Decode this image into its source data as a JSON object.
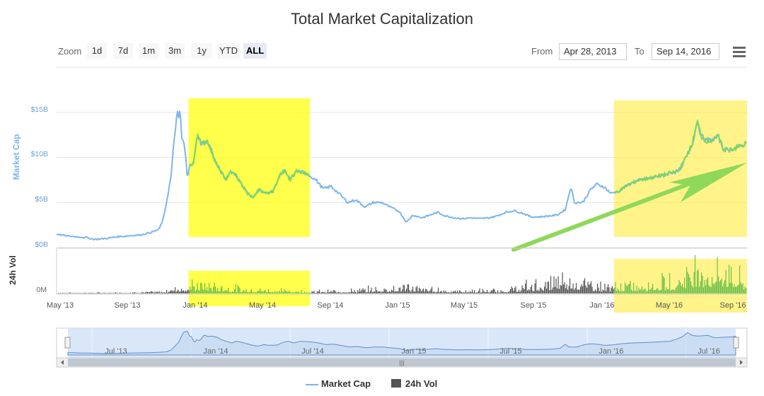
{
  "chart_data": {
    "type": "line",
    "title": "Total Market Capitalization",
    "zoom": {
      "label": "Zoom",
      "buttons": [
        "1d",
        "7d",
        "1m",
        "3m",
        "1y",
        "YTD",
        "ALL"
      ],
      "selected": "ALL"
    },
    "range": {
      "from_label": "From",
      "from": "Apr 28, 2013",
      "to_label": "To",
      "to": "Sep 14, 2016"
    },
    "y_axis": {
      "title": "Market Cap",
      "ticks": [
        "$0B",
        "$5B",
        "$10B",
        "$15B"
      ],
      "ylim": [
        0,
        15
      ]
    },
    "vol_axis": {
      "title": "24h Vol",
      "ticks": [
        "0M"
      ]
    },
    "x_ticks": [
      "May '13",
      "Sep '13",
      "Jan '14",
      "May '14",
      "Sep '14",
      "Jan '15",
      "May '15",
      "Sep '15",
      "Jan '16",
      "May '16",
      "Sep '16"
    ],
    "navigator_ticks": [
      "Jul '13",
      "Jan '14",
      "Jul '14",
      "Jan '15",
      "Jul '15",
      "Jan '16",
      "Jul '16"
    ],
    "legend": [
      "Market Cap",
      "24h Vol"
    ],
    "series": [
      {
        "name": "Market Cap",
        "color": "#7cb5ec",
        "points": [
          [
            "2013-04-28",
            1.5
          ],
          [
            "2013-05-15",
            1.3
          ],
          [
            "2013-06-01",
            1.2
          ],
          [
            "2013-06-20",
            1.1
          ],
          [
            "2013-07-05",
            0.9
          ],
          [
            "2013-07-25",
            1.0
          ],
          [
            "2013-08-15",
            1.2
          ],
          [
            "2013-09-05",
            1.3
          ],
          [
            "2013-09-25",
            1.4
          ],
          [
            "2013-10-15",
            1.7
          ],
          [
            "2013-10-28",
            2.0
          ],
          [
            "2013-11-05",
            3.2
          ],
          [
            "2013-11-12",
            5.5
          ],
          [
            "2013-11-19",
            8.0
          ],
          [
            "2013-11-25",
            12.5
          ],
          [
            "2013-11-30",
            15.0
          ],
          [
            "2013-12-02",
            14.0
          ],
          [
            "2013-12-05",
            15.5
          ],
          [
            "2013-12-08",
            12.0
          ],
          [
            "2013-12-12",
            11.5
          ],
          [
            "2013-12-15",
            10.0
          ],
          [
            "2013-12-18",
            7.5
          ],
          [
            "2013-12-22",
            9.5
          ],
          [
            "2013-12-28",
            9.0
          ],
          [
            "2014-01-05",
            12.5
          ],
          [
            "2014-01-12",
            11.5
          ],
          [
            "2014-01-20",
            11.8
          ],
          [
            "2014-01-28",
            11.2
          ],
          [
            "2014-02-06",
            9.5
          ],
          [
            "2014-02-15",
            8.5
          ],
          [
            "2014-02-25",
            7.5
          ],
          [
            "2014-03-05",
            8.5
          ],
          [
            "2014-03-15",
            8.0
          ],
          [
            "2014-03-25",
            7.0
          ],
          [
            "2014-04-05",
            6.0
          ],
          [
            "2014-04-15",
            5.5
          ],
          [
            "2014-04-25",
            6.5
          ],
          [
            "2014-05-05",
            6.0
          ],
          [
            "2014-05-20",
            6.2
          ],
          [
            "2014-06-01",
            8.0
          ],
          [
            "2014-06-10",
            8.5
          ],
          [
            "2014-06-20",
            7.5
          ],
          [
            "2014-07-01",
            8.5
          ],
          [
            "2014-07-20",
            8.2
          ],
          [
            "2014-08-05",
            7.5
          ],
          [
            "2014-08-18",
            6.5
          ],
          [
            "2014-09-01",
            6.8
          ],
          [
            "2014-09-15",
            6.0
          ],
          [
            "2014-10-01",
            5.0
          ],
          [
            "2014-10-15",
            5.3
          ],
          [
            "2014-11-01",
            4.5
          ],
          [
            "2014-11-15",
            5.0
          ],
          [
            "2014-12-01",
            5.0
          ],
          [
            "2014-12-15",
            4.5
          ],
          [
            "2015-01-01",
            4.0
          ],
          [
            "2015-01-14",
            2.8
          ],
          [
            "2015-01-25",
            3.6
          ],
          [
            "2015-02-10",
            3.3
          ],
          [
            "2015-02-25",
            3.6
          ],
          [
            "2015-03-10",
            3.9
          ],
          [
            "2015-03-25",
            3.5
          ],
          [
            "2015-04-10",
            3.3
          ],
          [
            "2015-04-25",
            3.2
          ],
          [
            "2015-05-10",
            3.3
          ],
          [
            "2015-05-25",
            3.2
          ],
          [
            "2015-06-10",
            3.3
          ],
          [
            "2015-06-25",
            3.5
          ],
          [
            "2015-07-10",
            3.9
          ],
          [
            "2015-07-25",
            4.1
          ],
          [
            "2015-08-10",
            3.8
          ],
          [
            "2015-08-25",
            3.4
          ],
          [
            "2015-09-10",
            3.4
          ],
          [
            "2015-09-25",
            3.5
          ],
          [
            "2015-10-10",
            3.6
          ],
          [
            "2015-10-25",
            4.2
          ],
          [
            "2015-11-04",
            6.8
          ],
          [
            "2015-11-10",
            5.0
          ],
          [
            "2015-11-25",
            5.0
          ],
          [
            "2015-12-10",
            6.5
          ],
          [
            "2015-12-20",
            7.0
          ],
          [
            "2016-01-01",
            6.8
          ],
          [
            "2016-01-15",
            6.0
          ],
          [
            "2016-01-30",
            6.3
          ],
          [
            "2016-02-15",
            7.0
          ],
          [
            "2016-03-01",
            7.4
          ],
          [
            "2016-03-15",
            7.6
          ],
          [
            "2016-04-01",
            7.8
          ],
          [
            "2016-04-15",
            8.0
          ],
          [
            "2016-05-01",
            8.3
          ],
          [
            "2016-05-15",
            8.5
          ],
          [
            "2016-05-28",
            10.0
          ],
          [
            "2016-06-08",
            11.5
          ],
          [
            "2016-06-17",
            14.0
          ],
          [
            "2016-06-25",
            12.3
          ],
          [
            "2016-07-05",
            11.8
          ],
          [
            "2016-07-15",
            12.0
          ],
          [
            "2016-07-25",
            12.3
          ],
          [
            "2016-08-02",
            11.0
          ],
          [
            "2016-08-10",
            10.8
          ],
          [
            "2016-08-20",
            11.0
          ],
          [
            "2016-09-01",
            11.2
          ],
          [
            "2016-09-14",
            11.6
          ]
        ]
      },
      {
        "name": "24h Vol",
        "color": "#434348",
        "relative_levels": [
          [
            "2013-04-28",
            0.02
          ],
          [
            "2013-08-01",
            0.02
          ],
          [
            "2013-11-01",
            0.05
          ],
          [
            "2013-11-30",
            0.18
          ],
          [
            "2013-12-15",
            0.22
          ],
          [
            "2014-01-05",
            0.25
          ],
          [
            "2014-02-15",
            0.2
          ],
          [
            "2014-04-01",
            0.12
          ],
          [
            "2014-06-01",
            0.1
          ],
          [
            "2014-08-01",
            0.06
          ],
          [
            "2014-10-01",
            0.08
          ],
          [
            "2015-01-14",
            0.2
          ],
          [
            "2015-04-01",
            0.08
          ],
          [
            "2015-07-01",
            0.09
          ],
          [
            "2015-08-25",
            0.25
          ],
          [
            "2015-11-04",
            0.45
          ],
          [
            "2016-01-01",
            0.2
          ],
          [
            "2016-03-01",
            0.25
          ],
          [
            "2016-05-01",
            0.35
          ],
          [
            "2016-06-17",
            0.8
          ],
          [
            "2016-07-10",
            0.55
          ],
          [
            "2016-08-02",
            0.7
          ],
          [
            "2016-09-14",
            0.3
          ]
        ]
      }
    ],
    "highlights": [
      {
        "color": "#ffff00",
        "opacity": 0.7,
        "from": "2013-12-20",
        "to": "2014-07-25"
      },
      {
        "color": "#ffea2a",
        "opacity": 0.55,
        "from": "2016-01-20",
        "to": "2016-09-14"
      }
    ],
    "annotation": {
      "type": "arrow",
      "color": "#8fd85a"
    }
  }
}
